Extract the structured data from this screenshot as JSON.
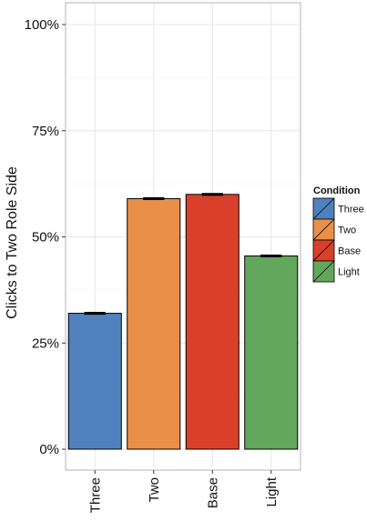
{
  "chart_data": {
    "type": "bar",
    "categories": [
      "Three",
      "Two",
      "Base",
      "Light"
    ],
    "values": [
      0.32,
      0.59,
      0.6,
      0.455
    ],
    "errors": [
      0.002,
      0.002,
      0.002,
      0.002
    ],
    "colors": [
      "#4f81bd",
      "#e8904a",
      "#d9402b",
      "#63a75c"
    ],
    "ylabel": "Clicks to Two Role Side",
    "xlabel": "",
    "ylim": [
      0,
      1
    ],
    "yticks": [
      0,
      0.25,
      0.5,
      0.75,
      1.0
    ],
    "ytick_labels": [
      "0%",
      "25%",
      "50%",
      "75%",
      "100%"
    ],
    "grid": true,
    "legend": {
      "title": "Condition",
      "placement": "right",
      "entries": [
        "Three",
        "Two",
        "Base",
        "Light"
      ]
    }
  }
}
